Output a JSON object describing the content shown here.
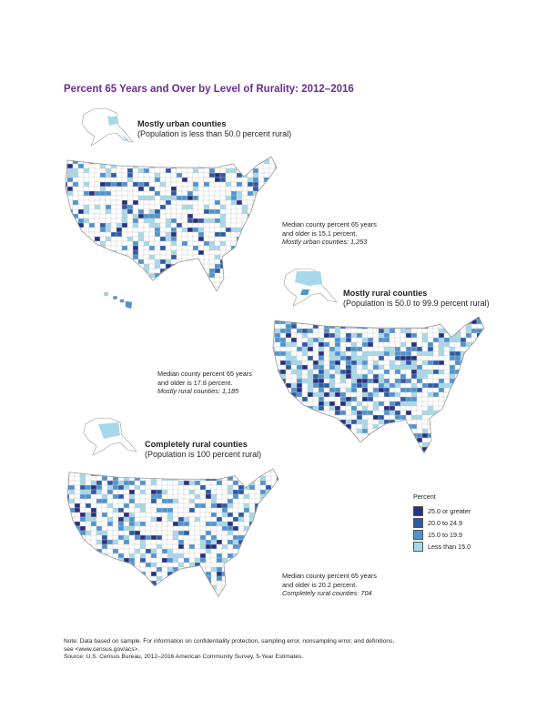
{
  "title": "Percent 65 Years and Over by Level of Rurality: 2012–2016",
  "colors": {
    "title": "#6b2c91",
    "c25": "#27317f",
    "c20": "#2e5aa5",
    "c15": "#4f93cf",
    "c0": "#a7d8ea",
    "outline": "#9a9a9a"
  },
  "panels": [
    {
      "heading": "Mostly urban counties",
      "subheading": "(Population is less than 50.0 percent rural)",
      "stat_line1": "Median county percent 65 years",
      "stat_line2": "and older is 15.1 percent.",
      "count_note": "Mostly urban counties: 1,253"
    },
    {
      "heading": "Mostly rural counties",
      "subheading": "(Population is 50.0 to 99.9 percent rural)",
      "stat_line1": "Median county percent 65 years",
      "stat_line2": "and older is 17.8 percent.",
      "count_note": "Mostly rural counties: 1,185"
    },
    {
      "heading": "Completely rural counties",
      "subheading": "(Population is 100 percent rural)",
      "stat_line1": "Median county percent 65 years",
      "stat_line2": "and older is 20.2 percent.",
      "count_note": "Completely rural counties: 704"
    }
  ],
  "legend": {
    "title": "Percent",
    "items": [
      {
        "label": "25.0 or greater",
        "color": "#27317f"
      },
      {
        "label": "20.0 to 24.9",
        "color": "#2e5aa5"
      },
      {
        "label": "15.0 to 19.9",
        "color": "#4f93cf"
      },
      {
        "label": "Less than 15.0",
        "color": "#a7d8ea"
      }
    ]
  },
  "note": {
    "line1": "Note: Data based on sample. For information on confidentiality protection, sampling error, nonsampling error, and definitions,",
    "line2": "see <www.census.gov/acs>.",
    "line3": "Source: U.S. Census Bureau, 2012–2016 American Community Survey, 5-Year Estimates."
  }
}
